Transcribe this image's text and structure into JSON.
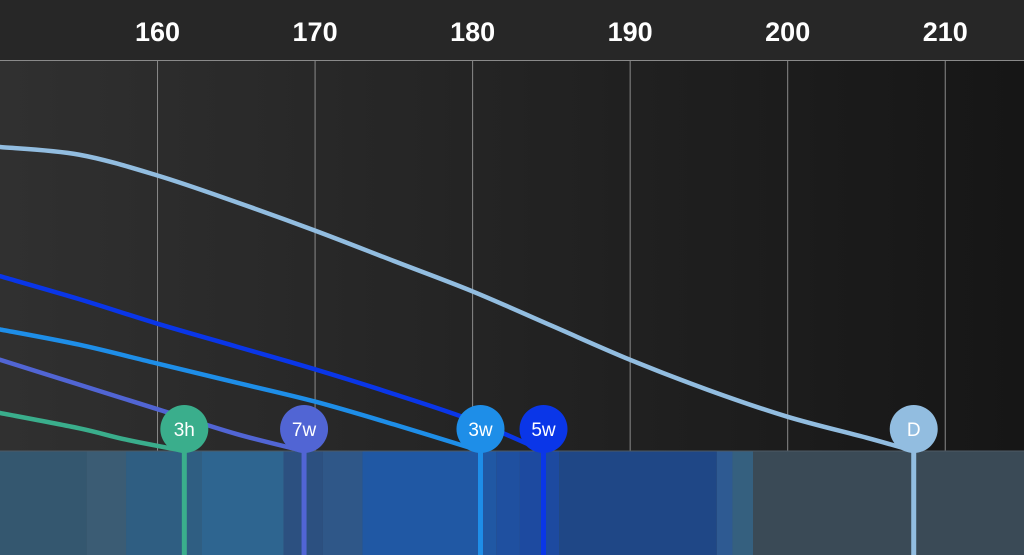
{
  "chart_data": {
    "type": "line",
    "title": "",
    "xlabel": "",
    "ylabel": "",
    "xlim": [
      150,
      215
    ],
    "x_ticks": [
      "160",
      "170",
      "180",
      "190",
      "200",
      "210"
    ],
    "grid": true,
    "series": [
      {
        "label": "D",
        "color": "#92bde0",
        "marker_x": 208,
        "curve": [
          [
            150,
            8.0
          ],
          [
            155,
            7.8
          ],
          [
            160,
            7.25
          ],
          [
            165,
            6.55
          ],
          [
            170,
            5.8
          ],
          [
            175,
            5.0
          ],
          [
            180,
            4.2
          ],
          [
            185,
            3.3
          ],
          [
            190,
            2.4
          ],
          [
            195,
            1.6
          ],
          [
            200,
            0.9
          ],
          [
            205,
            0.35
          ],
          [
            208,
            0.0
          ]
        ]
      },
      {
        "label": "5w",
        "color": "#0a36e8",
        "marker_x": 184.5,
        "curve": [
          [
            150,
            4.6
          ],
          [
            155,
            4.0
          ],
          [
            160,
            3.35
          ],
          [
            165,
            2.75
          ],
          [
            170,
            2.15
          ],
          [
            175,
            1.5
          ],
          [
            180,
            0.8
          ],
          [
            184.5,
            0.0
          ]
        ]
      },
      {
        "label": "3w",
        "color": "#1e8ee8",
        "marker_x": 180.5,
        "curve": [
          [
            150,
            3.2
          ],
          [
            155,
            2.8
          ],
          [
            160,
            2.3
          ],
          [
            165,
            1.8
          ],
          [
            170,
            1.3
          ],
          [
            175,
            0.7
          ],
          [
            180.5,
            0.0
          ]
        ]
      },
      {
        "label": "7w",
        "color": "#5165d4",
        "marker_x": 169.3,
        "curve": [
          [
            150,
            2.4
          ],
          [
            155,
            1.75
          ],
          [
            160,
            1.1
          ],
          [
            165,
            0.45
          ],
          [
            169.3,
            0.0
          ]
        ]
      },
      {
        "label": "3h",
        "color": "#3aae8c",
        "marker_x": 161.7,
        "curve": [
          [
            150,
            1.0
          ],
          [
            155,
            0.6
          ],
          [
            158,
            0.3
          ],
          [
            161.7,
            0.0
          ]
        ]
      }
    ]
  },
  "theme": {
    "background_left": "#303030",
    "background_right": "#161616",
    "header_background": "#272727",
    "grid_color": "#8a8a8a",
    "strip_base": "#3a4a56",
    "strip_bands": [
      {
        "from": 150,
        "to": 155.5,
        "color": "#34576f"
      },
      {
        "from": 155.5,
        "to": 158,
        "color": "#3b5c74"
      },
      {
        "from": 158,
        "to": 162.8,
        "color": "#2f5e82"
      },
      {
        "from": 162.8,
        "to": 168,
        "color": "#2e6590"
      },
      {
        "from": 168,
        "to": 170.5,
        "color": "#2c5080"
      },
      {
        "from": 170.5,
        "to": 173,
        "color": "#2f5788"
      },
      {
        "from": 173,
        "to": 181.5,
        "color": "#2058a4"
      },
      {
        "from": 181.5,
        "to": 183,
        "color": "#1f50a0"
      },
      {
        "from": 183,
        "to": 185.5,
        "color": "#1d4aa0"
      },
      {
        "from": 185.5,
        "to": 195.5,
        "color": "#1f4786"
      },
      {
        "from": 195.5,
        "to": 196.5,
        "color": "#2e5a92"
      },
      {
        "from": 196.5,
        "to": 197.8,
        "color": "#35607f"
      },
      {
        "from": 197.8,
        "to": 215,
        "color": "#3a4a56"
      }
    ]
  }
}
